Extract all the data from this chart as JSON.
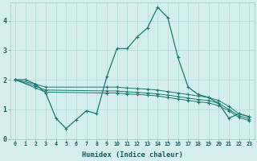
{
  "xlabel": "Humidex (Indice chaleur)",
  "background_color": "#d4eeee",
  "grid_color": "#b8dede",
  "line_color": "#1a7a6e",
  "xlim": [
    -0.5,
    23.5
  ],
  "ylim": [
    0,
    4.6
  ],
  "yticks": [
    0,
    1,
    2,
    3,
    4
  ],
  "xticks": [
    0,
    1,
    2,
    3,
    4,
    5,
    6,
    7,
    8,
    9,
    10,
    11,
    12,
    13,
    14,
    15,
    16,
    17,
    18,
    19,
    20,
    21,
    22,
    23
  ],
  "line1_x": [
    0,
    1,
    2,
    3,
    4,
    5,
    6,
    7,
    8,
    9,
    10,
    11,
    12,
    13,
    14,
    15,
    16,
    17,
    18,
    19,
    20,
    21,
    22,
    23
  ],
  "line1_y": [
    2.0,
    2.0,
    1.85,
    1.55,
    0.7,
    0.35,
    0.65,
    0.95,
    0.85,
    2.1,
    3.05,
    3.05,
    3.45,
    3.75,
    4.45,
    4.1,
    2.75,
    1.75,
    1.5,
    1.4,
    1.2,
    0.7,
    0.85,
    0.75
  ],
  "line2_x": [
    0,
    2,
    3,
    9,
    10,
    11,
    12,
    13,
    14,
    15,
    16,
    17,
    18,
    19,
    20,
    21,
    22,
    23
  ],
  "line2_y": [
    2.0,
    1.85,
    1.75,
    1.75,
    1.75,
    1.72,
    1.7,
    1.68,
    1.65,
    1.6,
    1.55,
    1.5,
    1.45,
    1.4,
    1.3,
    1.1,
    0.85,
    0.75
  ],
  "line3_x": [
    0,
    2,
    3,
    9,
    10,
    11,
    12,
    13,
    14,
    15,
    16,
    17,
    18,
    19,
    20,
    21,
    22,
    23
  ],
  "line3_y": [
    2.0,
    1.78,
    1.65,
    1.62,
    1.62,
    1.59,
    1.57,
    1.55,
    1.52,
    1.48,
    1.43,
    1.38,
    1.33,
    1.3,
    1.2,
    1.0,
    0.78,
    0.68
  ],
  "line4_x": [
    0,
    2,
    3,
    9,
    10,
    11,
    12,
    13,
    14,
    15,
    16,
    17,
    18,
    19,
    20,
    21,
    22,
    23
  ],
  "line4_y": [
    2.0,
    1.72,
    1.58,
    1.55,
    1.55,
    1.52,
    1.5,
    1.48,
    1.45,
    1.4,
    1.35,
    1.3,
    1.25,
    1.22,
    1.12,
    0.95,
    0.72,
    0.62
  ]
}
